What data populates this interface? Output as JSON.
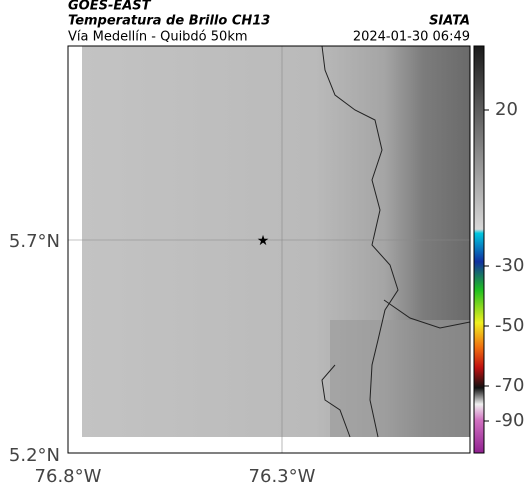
{
  "header": {
    "title": "GOES-EAST",
    "subtitle": "Temperatura de Brillo CH13",
    "source": "SIATA",
    "location": "Vía Medellín - Quibdó 50km",
    "datetime": "2024-01-30 06:49"
  },
  "map": {
    "xticks": [
      "76.8°W",
      "76.3°W"
    ],
    "yticks": [
      "5.7°N",
      "5.2°N"
    ]
  },
  "colorbar": {
    "ticks": [
      20,
      -30,
      -50,
      -70,
      -90
    ]
  }
}
